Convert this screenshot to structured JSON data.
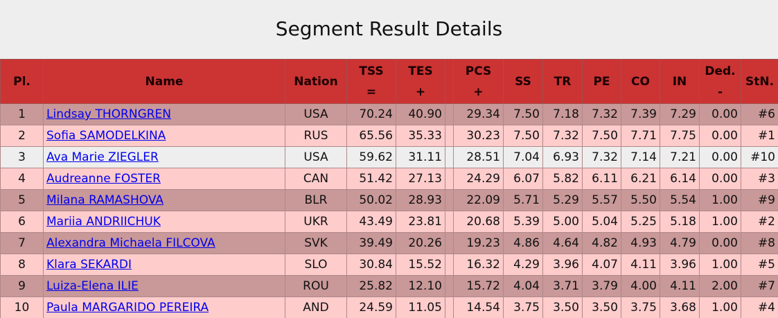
{
  "title": "Segment Result Details",
  "table": {
    "headers": [
      {
        "label": "Pl."
      },
      {
        "label": "Name"
      },
      {
        "label": "Nation"
      },
      {
        "label": "TSS",
        "sub": "="
      },
      {
        "label": "TES",
        "sub": "+"
      },
      {
        "label": "PCS",
        "sub": "+"
      },
      {
        "label": "SS"
      },
      {
        "label": "TR"
      },
      {
        "label": "PE"
      },
      {
        "label": "CO"
      },
      {
        "label": "IN"
      },
      {
        "label": "Ded.",
        "sub": "-"
      },
      {
        "label": "StN."
      }
    ],
    "rows": [
      [
        "1",
        "Lindsay THORNGREN",
        "USA",
        "70.24",
        "40.90",
        "29.34",
        "7.50",
        "7.18",
        "7.32",
        "7.39",
        "7.29",
        "0.00",
        "#6"
      ],
      [
        "2",
        "Sofia SAMODELKINA",
        "RUS",
        "65.56",
        "35.33",
        "30.23",
        "7.50",
        "7.32",
        "7.50",
        "7.71",
        "7.75",
        "0.00",
        "#1"
      ],
      [
        "3",
        "Ava Marie ZIEGLER",
        "USA",
        "59.62",
        "31.11",
        "28.51",
        "7.04",
        "6.93",
        "7.32",
        "7.14",
        "7.21",
        "0.00",
        "#10"
      ],
      [
        "4",
        "Audreanne FOSTER",
        "CAN",
        "51.42",
        "27.13",
        "24.29",
        "6.07",
        "5.82",
        "6.11",
        "6.21",
        "6.14",
        "0.00",
        "#3"
      ],
      [
        "5",
        "Milana RAMASHOVA",
        "BLR",
        "50.02",
        "28.93",
        "22.09",
        "5.71",
        "5.29",
        "5.57",
        "5.50",
        "5.54",
        "1.00",
        "#9"
      ],
      [
        "6",
        "Mariia ANDRIICHUK",
        "UKR",
        "43.49",
        "23.81",
        "20.68",
        "5.39",
        "5.00",
        "5.04",
        "5.25",
        "5.18",
        "1.00",
        "#2"
      ],
      [
        "7",
        "Alexandra Michaela FILCOVA",
        "SVK",
        "39.49",
        "20.26",
        "19.23",
        "4.86",
        "4.64",
        "4.82",
        "4.93",
        "4.79",
        "0.00",
        "#8"
      ],
      [
        "8",
        "Klara SEKARDI",
        "SLO",
        "30.84",
        "15.52",
        "16.32",
        "4.29",
        "3.96",
        "4.07",
        "4.11",
        "3.96",
        "1.00",
        "#5"
      ],
      [
        "9",
        "Luiza-Elena ILIE",
        "ROU",
        "25.82",
        "12.10",
        "15.72",
        "4.04",
        "3.71",
        "3.79",
        "4.00",
        "4.11",
        "2.00",
        "#7"
      ],
      [
        "10",
        "Paula MARGARIDO PEREIRA",
        "AND",
        "24.59",
        "11.05",
        "14.54",
        "3.75",
        "3.50",
        "3.50",
        "3.75",
        "3.68",
        "1.00",
        "#4"
      ]
    ]
  }
}
